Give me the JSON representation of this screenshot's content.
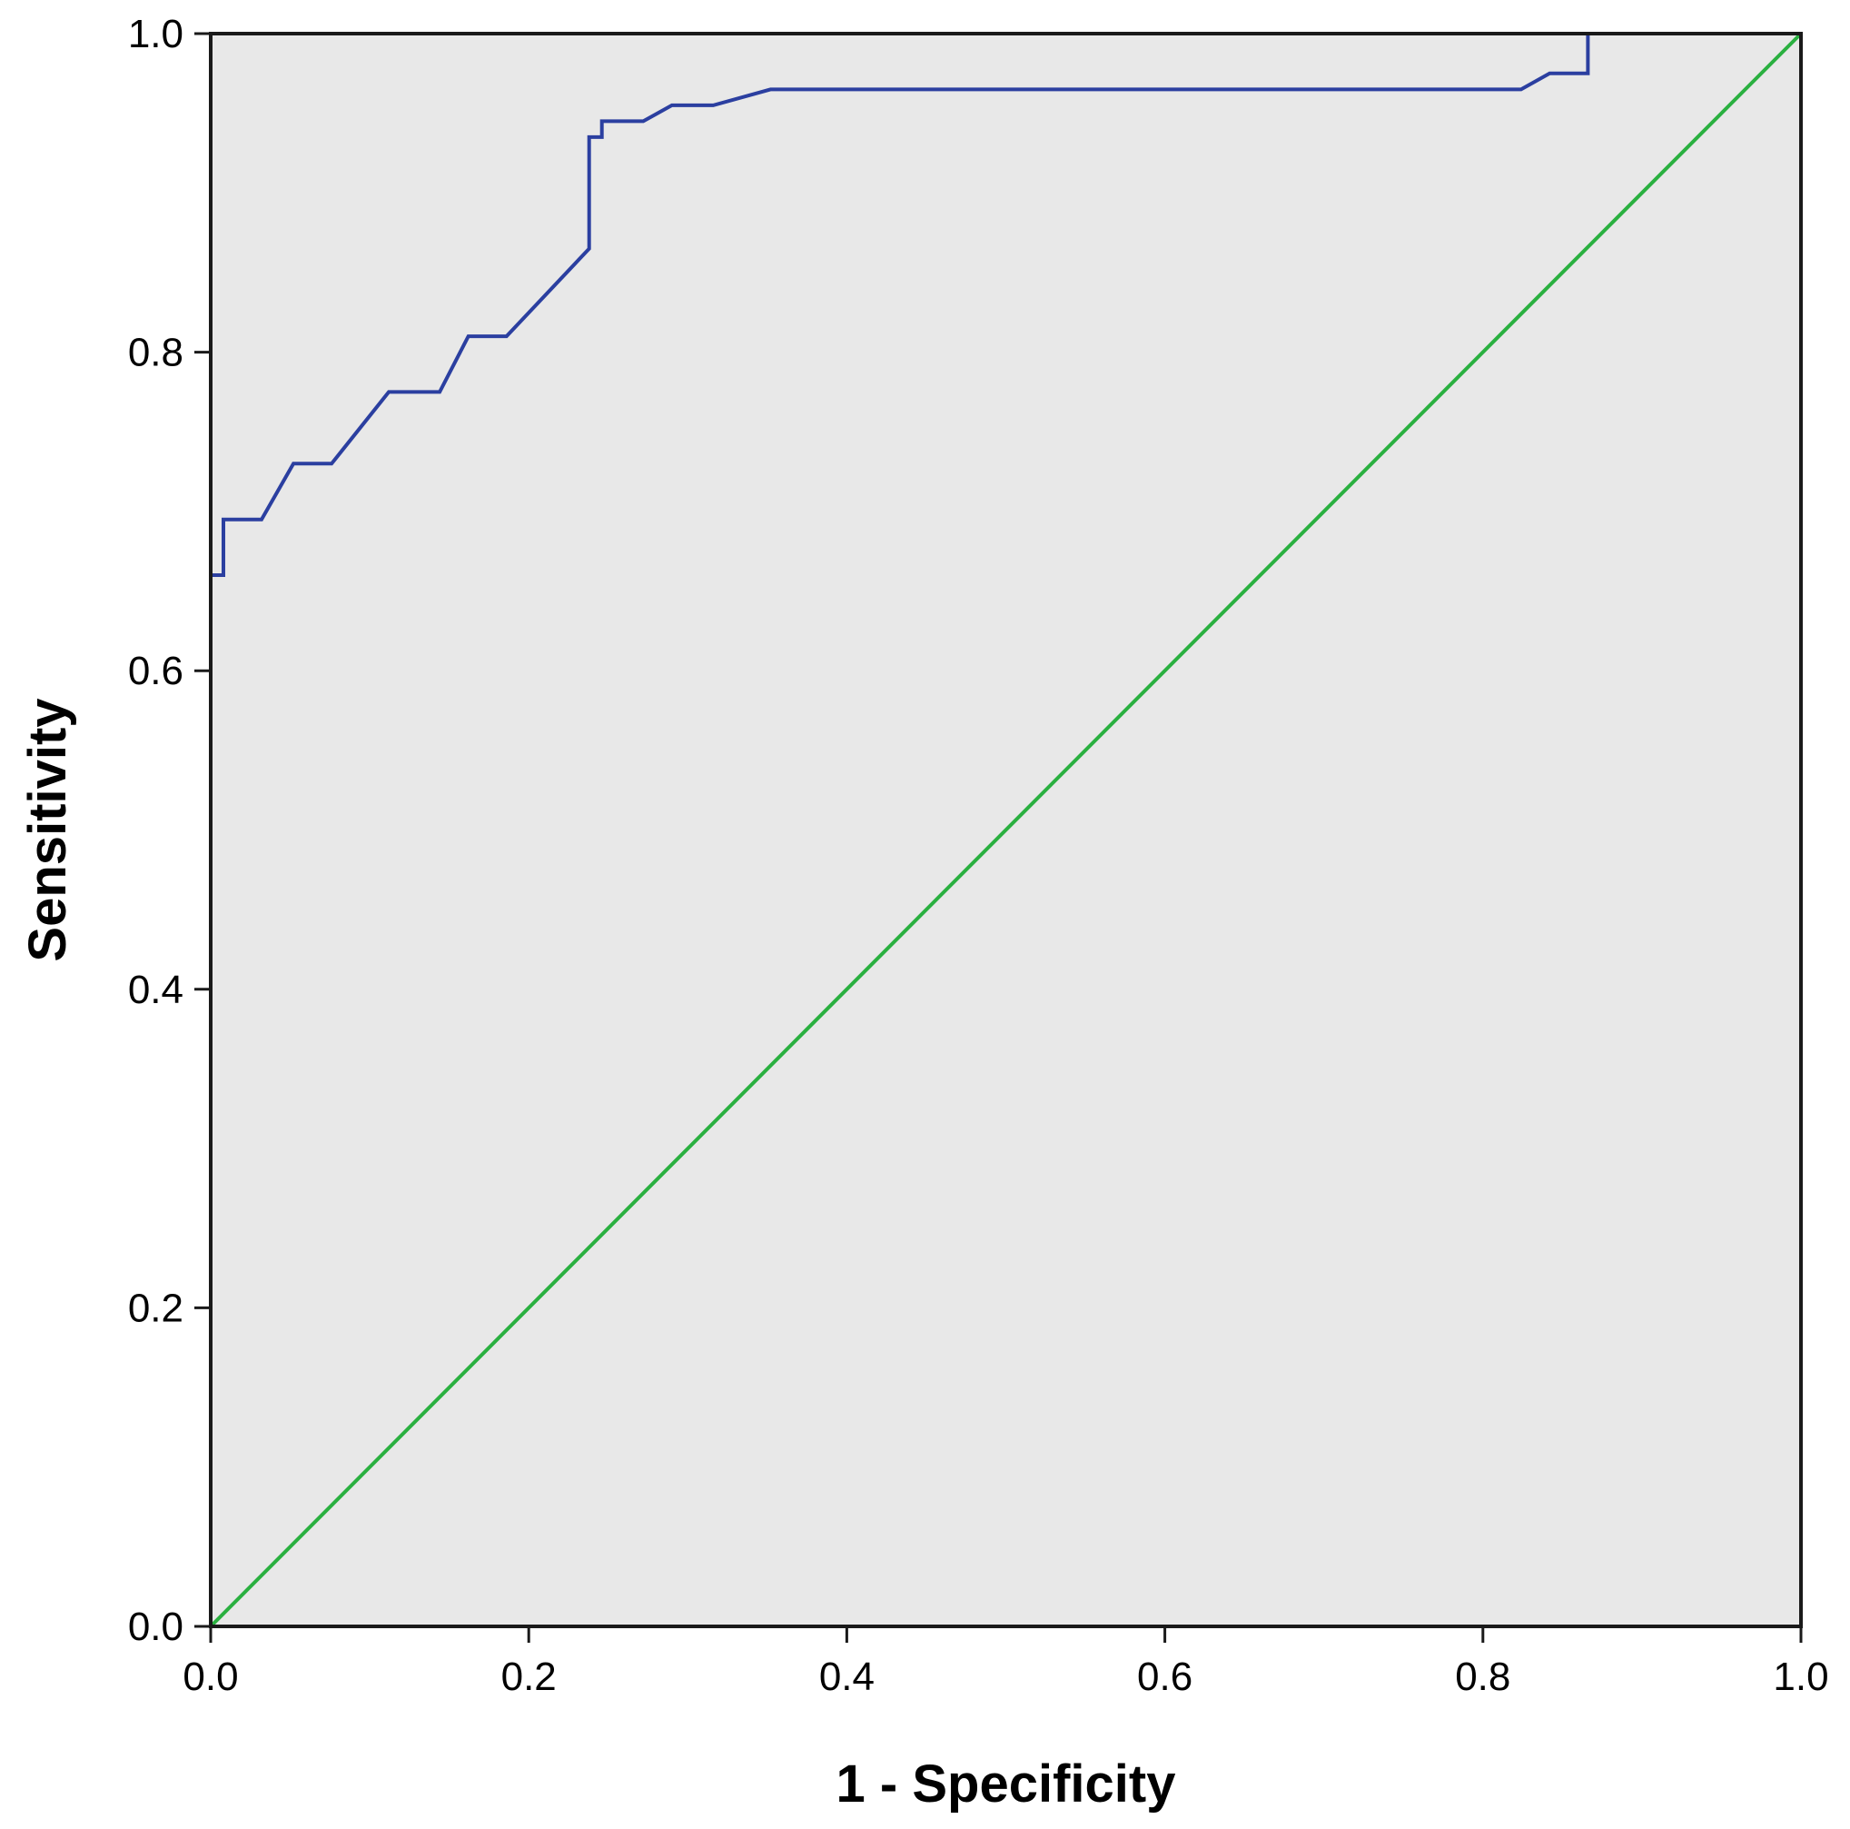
{
  "chart_data": {
    "type": "line",
    "title": "",
    "xlabel": "1 - Specificity",
    "ylabel": "Sensitivity",
    "xlim": [
      0.0,
      1.0
    ],
    "ylim": [
      0.0,
      1.0
    ],
    "x_ticks": [
      "0.0",
      "0.2",
      "0.4",
      "0.6",
      "0.8",
      "1.0"
    ],
    "y_ticks": [
      "0.0",
      "0.2",
      "0.4",
      "0.6",
      "0.8",
      "1.0"
    ],
    "grid": false,
    "background_color": "#e8e8e8",
    "series": [
      {
        "color": "#2b3fa0",
        "x": [
          0.0,
          0.0,
          0.008,
          0.008,
          0.032,
          0.052,
          0.076,
          0.112,
          0.144,
          0.162,
          0.186,
          0.238,
          0.238,
          0.246,
          0.246,
          0.272,
          0.29,
          0.316,
          0.352,
          0.824,
          0.842,
          0.866,
          0.866,
          1.0
        ],
        "y": [
          0.0,
          0.66,
          0.66,
          0.695,
          0.695,
          0.73,
          0.73,
          0.775,
          0.775,
          0.81,
          0.81,
          0.865,
          0.935,
          0.935,
          0.945,
          0.945,
          0.955,
          0.955,
          0.965,
          0.965,
          0.975,
          0.975,
          1.0,
          1.0
        ]
      },
      {
        "color": "#2ab040",
        "x": [
          0.0,
          1.0
        ],
        "y": [
          0.0,
          1.0
        ]
      }
    ]
  }
}
